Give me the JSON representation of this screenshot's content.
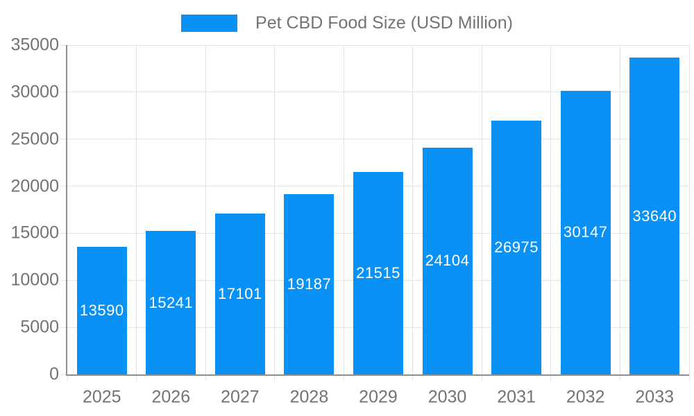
{
  "chart_data": {
    "type": "bar",
    "title": "Pet CBD Food Size (USD Million)",
    "legend": [
      "Pet CBD Food Size (USD Million)"
    ],
    "legend_position": "top",
    "categories": [
      "2025",
      "2026",
      "2027",
      "2028",
      "2029",
      "2030",
      "2031",
      "2032",
      "2033"
    ],
    "values": [
      13590,
      15241,
      17101,
      19187,
      21515,
      24104,
      26975,
      30147,
      33640
    ],
    "data_labels": [
      "13590",
      "15241",
      "17101",
      "19187",
      "21515",
      "24104",
      "26975",
      "30147",
      "33640"
    ],
    "xlabel": "",
    "ylabel": "",
    "ylim": [
      0,
      35000
    ],
    "yticks": [
      0,
      5000,
      10000,
      15000,
      20000,
      25000,
      30000,
      35000
    ],
    "grid": true,
    "data_label_position": "inside-center"
  },
  "colors": {
    "bar": "#0a91f6",
    "grid": "#e3e3e3",
    "axis": "#8f8f8f",
    "text": "#737373",
    "bar_label": "#ffffff",
    "background": "#ffffff"
  }
}
